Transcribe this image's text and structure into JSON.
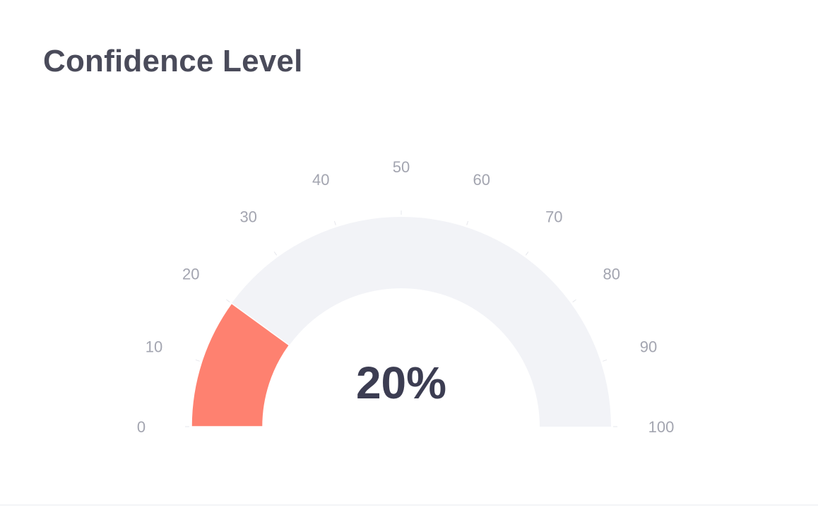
{
  "chart_data": {
    "type": "gauge",
    "title": "Confidence Level",
    "value": 20,
    "value_label": "20%",
    "min": 0,
    "max": 100,
    "ticks": [
      0,
      10,
      20,
      30,
      40,
      50,
      60,
      70,
      80,
      90,
      100
    ],
    "tick_labels": [
      "0",
      "10",
      "20",
      "30",
      "40",
      "50",
      "60",
      "70",
      "80",
      "90",
      "100"
    ],
    "colors": {
      "fill": "#fe8170",
      "track": "#f2f3f7",
      "tick_label": "#a3a5b0",
      "value_text": "#3c3d52",
      "title": "#4a4b5a"
    }
  }
}
